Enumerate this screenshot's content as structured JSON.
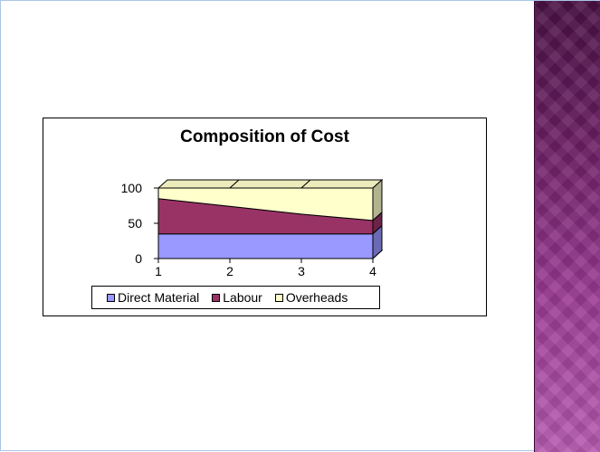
{
  "colors": {
    "direct_material": "#9999ff",
    "labour": "#993366",
    "overheads": "#ffffcc",
    "side_band": "#7a2a72"
  },
  "chart_data": {
    "type": "area",
    "stacked": true,
    "three_d": true,
    "title": "Composition of Cost",
    "xlabel": "",
    "ylabel": "",
    "x": [
      1,
      2,
      3,
      4
    ],
    "x_tick_labels": [
      "1",
      "2",
      "3",
      "4"
    ],
    "y_tick_labels": [
      "0",
      "50",
      "100"
    ],
    "ylim": [
      0,
      100
    ],
    "grid": false,
    "legend_position": "bottom",
    "series": [
      {
        "name": "Direct Material",
        "values": [
          35,
          35,
          35,
          35
        ],
        "color": "#9999ff"
      },
      {
        "name": "Labour",
        "values": [
          50,
          39,
          28,
          19
        ],
        "color": "#993366"
      },
      {
        "name": "Overheads",
        "values": [
          15,
          26,
          37,
          46
        ],
        "color": "#ffffcc"
      }
    ]
  }
}
